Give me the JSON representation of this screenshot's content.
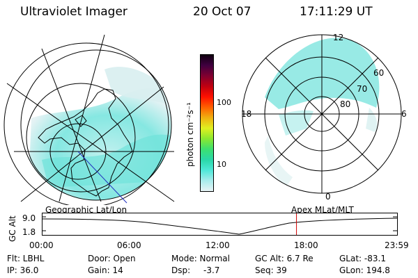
{
  "header": {
    "instrument": "Ultraviolet Imager",
    "date": "20 Oct 07",
    "time": "17:11:29 UT"
  },
  "colorbar": {
    "unit": "photon cm⁻²s⁻¹",
    "ticks": [
      "100",
      "10"
    ],
    "scale": "log",
    "colors": [
      "#e8f4f6",
      "#a8ecec",
      "#4fe8d8",
      "#2ad8a8",
      "#3ce070",
      "#8ae830",
      "#e0f020",
      "#f0b010",
      "#ff6000",
      "#ff1000",
      "#c00010",
      "#800030",
      "#400040",
      "#100010"
    ]
  },
  "polar_plot": {
    "lat_labels": [
      "60",
      "70",
      "80"
    ],
    "mlt_labels": [
      "12",
      "18",
      "6",
      "0"
    ]
  },
  "altitude_plot": {
    "y_axis_label": "GC Alt",
    "y_ticks": [
      "9.0",
      "1.8"
    ],
    "left_title": "Geographic Lat/Lon",
    "right_title": "Apex MLat/MLT",
    "x_ticks": [
      "00:00",
      "06:00",
      "12:00",
      "18:00",
      "23:59"
    ],
    "marker_time_hours": 17.19,
    "marker_color": "#d00000"
  },
  "info": {
    "filter": "Flt: LBHL",
    "ip": "IP: 36.0",
    "door": "Door: Open",
    "gain": "Gain: 14",
    "mode": "Mode: Normal",
    "dsp_label": "Dsp:",
    "dsp_value": "-3.7",
    "gc_alt": "GC Alt: 6.7 Re",
    "seq": "Seq: 39",
    "glat": "GLat: -83.1",
    "glon": "GLon: 194.8"
  }
}
